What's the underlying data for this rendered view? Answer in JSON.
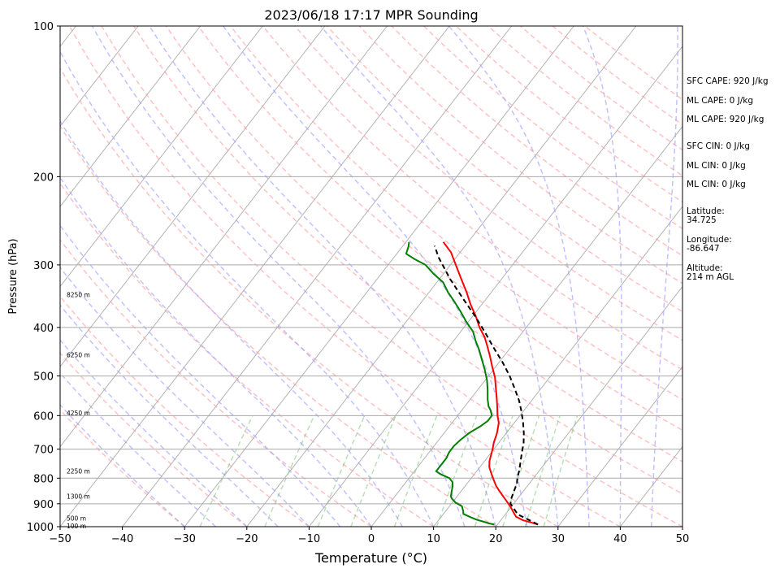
{
  "chart_data": {
    "type": "line",
    "subtype": "skew-t",
    "title": "2023/06/18 17:17 MPR Sounding",
    "xlabel": "Temperature (°C)",
    "ylabel": "Pressure (hPa)",
    "xlim": [
      -50,
      50
    ],
    "ylim": [
      1000,
      100
    ],
    "yscale": "log",
    "grid": true,
    "x_ticks": [
      "−50",
      "−40",
      "−30",
      "−20",
      "−10",
      "0",
      "10",
      "20",
      "30",
      "40",
      "50"
    ],
    "x_tick_values": [
      -50,
      -40,
      -30,
      -20,
      -10,
      0,
      10,
      20,
      30,
      40,
      50
    ],
    "y_ticks": [
      "100",
      "200",
      "300",
      "400",
      "500",
      "600",
      "700",
      "800",
      "900",
      "1000"
    ],
    "y_tick_values": [
      100,
      200,
      300,
      400,
      500,
      600,
      700,
      800,
      900,
      1000
    ],
    "height_labels": [
      {
        "p": 1000,
        "text": "100 m"
      },
      {
        "p": 965,
        "text": "500 m"
      },
      {
        "p": 872,
        "text": "1300 m"
      },
      {
        "p": 777,
        "text": "2250 m"
      },
      {
        "p": 595,
        "text": "4250 m"
      },
      {
        "p": 455,
        "text": "6250 m"
      },
      {
        "p": 345,
        "text": "8250 m"
      }
    ],
    "series": [
      {
        "color": "#ff0000",
        "style": "solid",
        "points": [
          [
            26.5,
            990
          ],
          [
            25,
            980
          ],
          [
            23.5,
            970
          ],
          [
            22,
            955
          ],
          [
            21,
            935
          ],
          [
            20,
            915
          ],
          [
            19,
            897
          ],
          [
            18,
            880
          ],
          [
            16.5,
            855
          ],
          [
            15,
            830
          ],
          [
            13.5,
            800
          ],
          [
            12.5,
            780
          ],
          [
            11.5,
            760
          ],
          [
            10.8,
            740
          ],
          [
            10.3,
            720
          ],
          [
            9.8,
            700
          ],
          [
            9.2,
            680
          ],
          [
            8.5,
            650
          ],
          [
            7.5,
            620
          ],
          [
            6.4,
            600
          ],
          [
            5.2,
            575
          ],
          [
            4,
            552
          ],
          [
            2.6,
            527
          ],
          [
            1.2,
            503
          ],
          [
            -0.5,
            480
          ],
          [
            -2.2,
            457
          ],
          [
            -4,
            435
          ],
          [
            -5.5,
            418
          ],
          [
            -7.5,
            400
          ],
          [
            -9.5,
            380
          ],
          [
            -11.8,
            360
          ],
          [
            -14,
            340
          ],
          [
            -16.5,
            320
          ],
          [
            -19,
            301
          ],
          [
            -21.5,
            283
          ],
          [
            -24,
            270
          ]
        ]
      },
      {
        "color": "#008000",
        "style": "solid",
        "points": [
          [
            19.5,
            990
          ],
          [
            18.5,
            985
          ],
          [
            17.5,
            978
          ],
          [
            16,
            968
          ],
          [
            14.5,
            955
          ],
          [
            13.2,
            943
          ],
          [
            12.8,
            930
          ],
          [
            12,
            910
          ],
          [
            10.5,
            895
          ],
          [
            9.5,
            880
          ],
          [
            9,
            870
          ],
          [
            8.5,
            850
          ],
          [
            8,
            830
          ],
          [
            7.5,
            815
          ],
          [
            6.5,
            800
          ],
          [
            4.5,
            785
          ],
          [
            3.5,
            775
          ],
          [
            3.5,
            755
          ],
          [
            3.5,
            730
          ],
          [
            3.2,
            710
          ],
          [
            3.2,
            690
          ],
          [
            3.5,
            670
          ],
          [
            4,
            650
          ],
          [
            5,
            630
          ],
          [
            5.5,
            615
          ],
          [
            5.5,
            600
          ],
          [
            4.6,
            585
          ],
          [
            3.8,
            575
          ],
          [
            2.8,
            557
          ],
          [
            1.6,
            533
          ],
          [
            0.3,
            510
          ],
          [
            -1.3,
            487
          ],
          [
            -3,
            465
          ],
          [
            -4.8,
            443
          ],
          [
            -6.5,
            425
          ],
          [
            -8,
            408
          ],
          [
            -10.3,
            390
          ],
          [
            -12.5,
            372
          ],
          [
            -14.8,
            355
          ],
          [
            -17,
            340
          ],
          [
            -19,
            325
          ],
          [
            -21.5,
            313
          ],
          [
            -24,
            300
          ],
          [
            -26.5,
            292
          ],
          [
            -28.5,
            285
          ],
          [
            -29,
            276
          ],
          [
            -29.5,
            270
          ]
        ]
      },
      {
        "color": "#000000",
        "style": "dashed",
        "points": [
          [
            26.5,
            990
          ],
          [
            22,
            945
          ],
          [
            19.5,
            900
          ],
          [
            19,
            880
          ],
          [
            18.5,
            850
          ],
          [
            18,
            820
          ],
          [
            17.4,
            800
          ],
          [
            16.7,
            770
          ],
          [
            15.8,
            740
          ],
          [
            14.9,
            710
          ],
          [
            14,
            680
          ],
          [
            12.8,
            650
          ],
          [
            11.4,
            620
          ],
          [
            9.8,
            590
          ],
          [
            8,
            560
          ],
          [
            5.8,
            530
          ],
          [
            3.4,
            500
          ],
          [
            0.6,
            470
          ],
          [
            -2.6,
            440
          ],
          [
            -5.9,
            410
          ],
          [
            -9.6,
            380
          ],
          [
            -13.8,
            350
          ],
          [
            -18.3,
            320
          ],
          [
            -22.8,
            290
          ],
          [
            -24.9,
            275
          ]
        ]
      }
    ]
  },
  "info": {
    "sfc_cape": "SFC CAPE: 920 J/kg",
    "ml_cape_1": "ML CAPE: 0 J/kg",
    "ml_cape_2": "ML CAPE: 920 J/kg",
    "sfc_cin": "SFC CIN: 0 J/kg",
    "ml_cin_1": "ML CIN: 0 J/kg",
    "ml_cin_2": "ML CIN: 0 J/kg",
    "latitude": "Latitude:\n34.725",
    "longitude": "Longitude:\n-86.647",
    "altitude": "Altitude:\n214 m AGL"
  }
}
